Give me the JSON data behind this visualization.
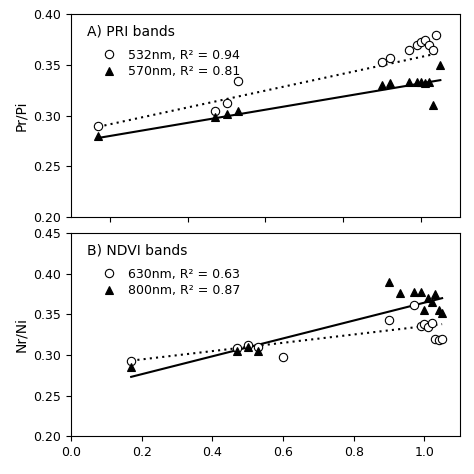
{
  "panel_A": {
    "title": "A) PRI bands",
    "ylabel": "Pr/Pi",
    "ylim": [
      0.2,
      0.4
    ],
    "yticks": [
      0.2,
      0.25,
      0.3,
      0.35,
      0.4
    ],
    "series": [
      {
        "label": "532nm, R² = 0.94",
        "marker": "o",
        "filled": false,
        "linestyle": "dotted",
        "x": [
          0.17,
          0.47,
          0.5,
          0.53,
          0.9,
          0.92,
          0.97,
          0.99,
          1.0,
          1.01,
          1.02,
          1.03,
          1.04
        ],
        "y": [
          0.29,
          0.305,
          0.312,
          0.334,
          0.353,
          0.357,
          0.365,
          0.37,
          0.373,
          0.375,
          0.37,
          0.365,
          0.38
        ],
        "fit_x": [
          0.17,
          1.05
        ],
        "fit_y": [
          0.289,
          0.362
        ]
      },
      {
        "label": "570nm, R² = 0.81",
        "marker": "^",
        "filled": true,
        "linestyle": "solid",
        "x": [
          0.17,
          0.47,
          0.5,
          0.53,
          0.9,
          0.92,
          0.97,
          0.99,
          1.0,
          1.01,
          1.02,
          1.03,
          1.05
        ],
        "y": [
          0.28,
          0.299,
          0.302,
          0.305,
          0.33,
          0.332,
          0.333,
          0.333,
          0.333,
          0.332,
          0.333,
          0.31,
          0.35
        ],
        "fit_x": [
          0.17,
          1.05
        ],
        "fit_y": [
          0.278,
          0.335
        ]
      }
    ]
  },
  "panel_B": {
    "title": "B) NDVI bands",
    "ylabel": "Nr/Ni",
    "ylim": [
      0.2,
      0.45
    ],
    "yticks": [
      0.2,
      0.25,
      0.3,
      0.35,
      0.4,
      0.45
    ],
    "series": [
      {
        "label": "630nm, R² = 0.63",
        "marker": "o",
        "filled": false,
        "linestyle": "dotted",
        "x": [
          0.17,
          0.47,
          0.5,
          0.53,
          0.6,
          0.9,
          0.97,
          0.99,
          1.0,
          1.01,
          1.02,
          1.03,
          1.04,
          1.05
        ],
        "y": [
          0.292,
          0.308,
          0.312,
          0.31,
          0.298,
          0.343,
          0.362,
          0.336,
          0.338,
          0.335,
          0.34,
          0.32,
          0.318,
          0.32
        ],
        "fit_x": [
          0.17,
          1.05
        ],
        "fit_y": [
          0.293,
          0.338
        ]
      },
      {
        "label": "800nm, R² = 0.87",
        "marker": "^",
        "filled": true,
        "linestyle": "solid",
        "x": [
          0.17,
          0.47,
          0.5,
          0.53,
          0.9,
          0.93,
          0.97,
          0.99,
          1.0,
          1.01,
          1.02,
          1.03,
          1.04,
          1.05
        ],
        "y": [
          0.285,
          0.305,
          0.31,
          0.305,
          0.39,
          0.376,
          0.377,
          0.378,
          0.355,
          0.37,
          0.365,
          0.375,
          0.355,
          0.352
        ],
        "fit_x": [
          0.17,
          1.05
        ],
        "fit_y": [
          0.273,
          0.37
        ]
      }
    ]
  },
  "xlim": [
    0.1,
    1.1
  ],
  "xticks": [
    0.2,
    0.4,
    0.6,
    0.8,
    1.0
  ],
  "x_bottom_ticks": [
    0.0,
    0.2,
    0.4,
    0.6,
    0.8,
    1.0
  ],
  "background_color": "#ffffff",
  "marker_size": 6,
  "line_width": 1.5
}
